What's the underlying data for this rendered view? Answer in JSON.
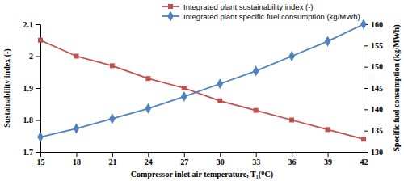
{
  "chart_data": {
    "type": "line",
    "x_label": "Compressor inlet air temperature, T₁(ᴼC)",
    "y_label": "Sustainability index (-)",
    "y2_label": "Specific fuel consumption (kg/MWh)",
    "x": [
      15,
      18,
      21,
      24,
      27,
      30,
      33,
      36,
      39,
      42
    ],
    "xlim": [
      15,
      42
    ],
    "xticks": [
      15,
      18,
      21,
      24,
      27,
      30,
      33,
      36,
      39,
      42
    ],
    "ylim": [
      1.7,
      2.1
    ],
    "yticks": [
      1.7,
      1.8,
      1.9,
      2,
      2.1
    ],
    "y2lim": [
      130,
      160
    ],
    "y2ticks": [
      130,
      135,
      140,
      145,
      150,
      155,
      160
    ],
    "grid": false,
    "legend": "top",
    "series": [
      {
        "name": "Integrated plant sustainability index (-)",
        "color": "#c0504d",
        "axis": "y",
        "marker": "square",
        "line_style": "solid",
        "values": [
          2.05,
          2.0,
          1.97,
          1.93,
          1.9,
          1.86,
          1.83,
          1.8,
          1.77,
          1.74
        ]
      },
      {
        "name": "Integrated plant specific fuel consumption (kg/MWh)",
        "color": "#4f81bd",
        "axis": "y2",
        "marker": "diamond",
        "line_style": "solid",
        "values": [
          133.5,
          135.5,
          137.8,
          140.2,
          143.0,
          146.0,
          149.0,
          152.5,
          156.0,
          160.0
        ]
      }
    ]
  }
}
